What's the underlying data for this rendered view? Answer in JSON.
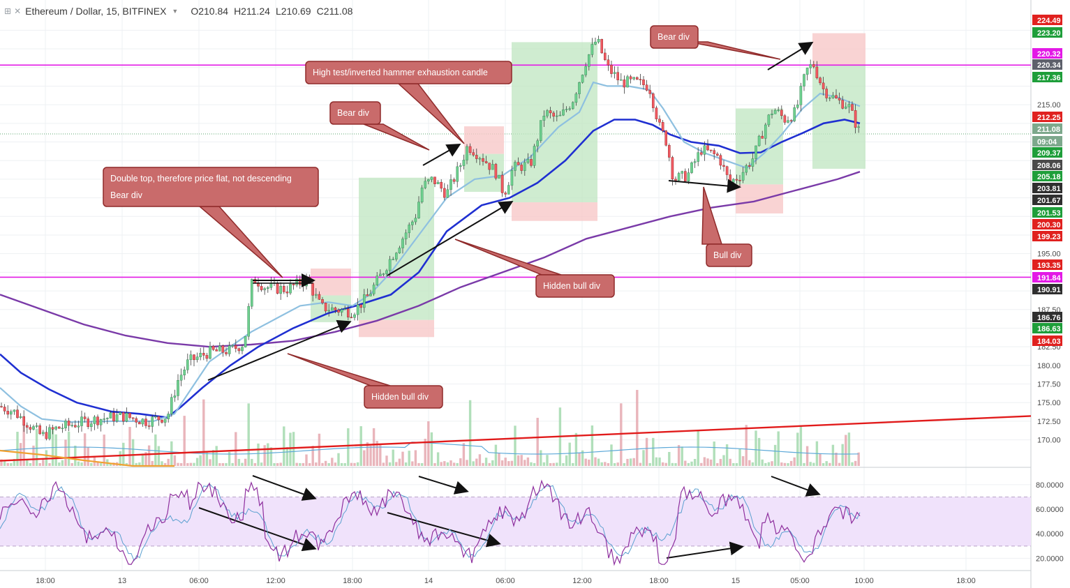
{
  "header": {
    "symbol": "Ethereum / Dollar, 15, BITFINEX",
    "open": "O210.84",
    "high": "H211.24",
    "low": "L210.69",
    "close": "C211.08"
  },
  "chart_data": {
    "type": "candlestick",
    "price_axis": {
      "range": [
        166.5,
        227
      ],
      "ticks": [
        "170.00",
        "172.50",
        "175.00",
        "177.50",
        "180.00",
        "182.50",
        "187.50",
        "195.00",
        "215.00"
      ],
      "badges": [
        {
          "label": "224.49",
          "color": "#e0211f"
        },
        {
          "label": "223.20",
          "color": "#1e9e3a"
        },
        {
          "label": "220.32",
          "color": "#e319e6"
        },
        {
          "label": "220.34",
          "color": "#5d606b"
        },
        {
          "label": "217.36",
          "color": "#1e9e3a"
        },
        {
          "label": "212.25",
          "color": "#e0211f"
        },
        {
          "label": "211.08",
          "color": "#7da88c"
        },
        {
          "label": "09:04",
          "color": "#7da88c"
        },
        {
          "label": "209.37",
          "color": "#1e9e3a"
        },
        {
          "label": "208.06",
          "color": "#4a4a4a"
        },
        {
          "label": "205.18",
          "color": "#1e9e3a"
        },
        {
          "label": "203.81",
          "color": "#2f2f2f"
        },
        {
          "label": "201.67",
          "color": "#2f2f2f"
        },
        {
          "label": "201.53",
          "color": "#1e9e3a"
        },
        {
          "label": "200.30",
          "color": "#e0211f"
        },
        {
          "label": "199.23",
          "color": "#e0211f"
        },
        {
          "label": "193.35",
          "color": "#e0211f"
        },
        {
          "label": "191.84",
          "color": "#e319e6"
        },
        {
          "label": "190.91",
          "color": "#2f2f2f"
        },
        {
          "label": "186.76",
          "color": "#2f2f2f"
        },
        {
          "label": "186.63",
          "color": "#1e9e3a"
        },
        {
          "label": "184.03",
          "color": "#e0211f"
        }
      ]
    },
    "time_axis": {
      "labels": [
        "18:00",
        "13",
        "06:00",
        "12:00",
        "18:00",
        "14",
        "06:00",
        "12:00",
        "18:00",
        "15",
        "05:00",
        "10:00",
        "18:00"
      ]
    },
    "rsi_axis": {
      "range": [
        10,
        93
      ],
      "ticks": [
        "80.0000",
        "60.0000",
        "40.0000",
        "20.0000"
      ],
      "band": [
        30,
        70
      ]
    },
    "horizontal_levels": [
      {
        "price": 220.32,
        "color": "#e319e6"
      },
      {
        "price": 191.84,
        "color": "#e319e6"
      }
    ],
    "annotations": [
      {
        "text": "Double top, therefore price flat, not descending\nBear div"
      },
      {
        "text": "Bear div"
      },
      {
        "text": "High test/inverted hammer exhaustion candle"
      },
      {
        "text": "Hidden bull div"
      },
      {
        "text": "Hidden bull div"
      },
      {
        "text": "Bull div"
      },
      {
        "text": "Bear div"
      }
    ],
    "colors": {
      "up": "#53b987",
      "down": "#eb4d5c",
      "ma_fast": "#8ec0e0",
      "ma_mid": "#1f2fd1",
      "ma_slow": "#7a3aa8",
      "trendline": "#e11b1b",
      "rsi_band": "#f0e2fb",
      "rsi": "#8e2f9e",
      "rsi_signal": "#5ba0d0",
      "callout_fill": "#c96b6b",
      "callout_stroke": "#8f2a2a",
      "long_box": "#bfe6c0",
      "short_box": "#f7c8c8"
    }
  }
}
